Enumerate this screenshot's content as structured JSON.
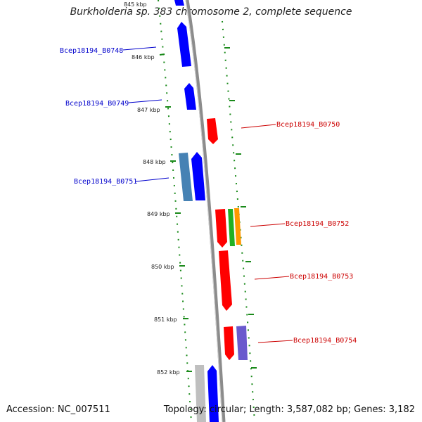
{
  "title": "Burkholderia sp. 383 chromosome 2, complete sequence",
  "footer": {
    "accession": "Accession: NC_007511",
    "summary": "Topology: circular; Length: 3,587,082 bp; Genes: 3,182"
  },
  "ticks": [
    "845 kbp",
    "846 kbp",
    "847 kbp",
    "848 kbp",
    "849 kbp",
    "850 kbp",
    "851 kbp",
    "852 kbp"
  ],
  "genes": [
    {
      "label": "Bcep18194_B0748",
      "strand": "left",
      "color": "#0000ff"
    },
    {
      "label": "Bcep18194_B0749",
      "strand": "left",
      "color": "#0000ff"
    },
    {
      "label": "Bcep18194_B0750",
      "strand": "right",
      "color": "#ff0000"
    },
    {
      "label": "Bcep18194_B0751",
      "strand": "left",
      "color": "#0000ff"
    },
    {
      "label": "Bcep18194_B0752",
      "strand": "right",
      "color": "#ff0000"
    },
    {
      "label": "Bcep18194_B0753",
      "strand": "right",
      "color": "#ff0000"
    },
    {
      "label": "Bcep18194_B0754",
      "strand": "right",
      "color": "#ff0000"
    }
  ],
  "colors": {
    "backbone": "#8c8c8c",
    "tick": "#1a8a1a",
    "steelblue": "#4682b4",
    "green": "#22b022",
    "orange": "#ff9900",
    "purple": "#6a5acd",
    "gray": "#bfbfbf"
  }
}
